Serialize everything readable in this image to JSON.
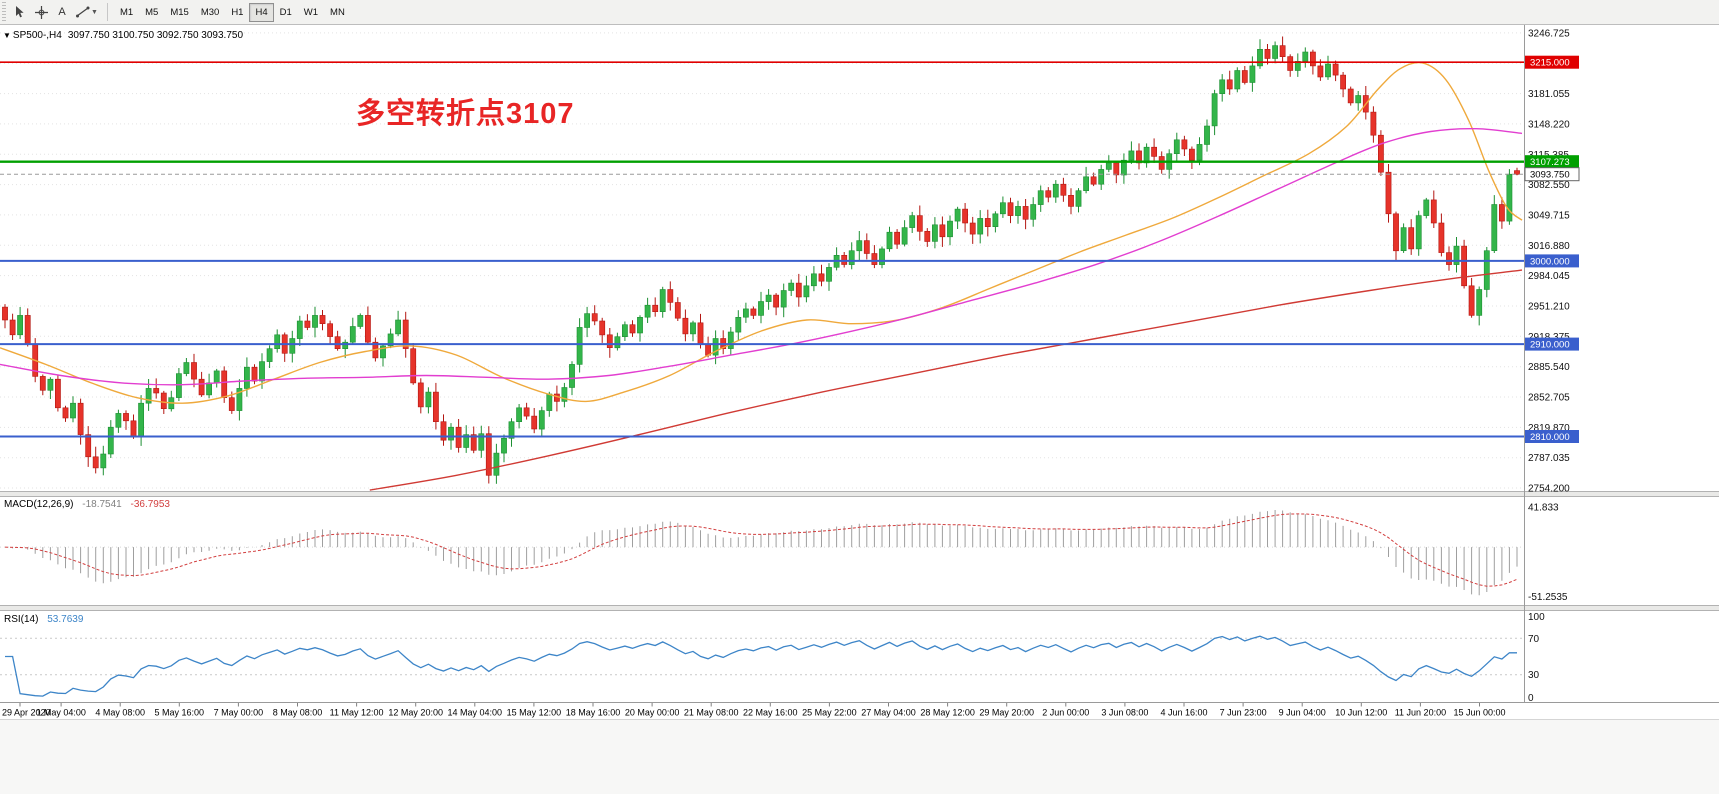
{
  "toolbar": {
    "text_tool_label": "A",
    "timeframes": [
      "M1",
      "M5",
      "M15",
      "M30",
      "H1",
      "H4",
      "D1",
      "W1",
      "MN"
    ],
    "active_timeframe": "H4"
  },
  "chart": {
    "header_symbol": "SP500-,H4",
    "header_ohlc": "3097.750 3100.750 3092.750 3093.750",
    "annotation": {
      "text": "多空转折点3107",
      "color": "#e82525"
    },
    "price_axis_labels": [
      "3246.725",
      "3213.890",
      "3181.055",
      "3148.220",
      "3115.385",
      "3082.550",
      "3049.715",
      "3016.880",
      "2984.045",
      "2951.210",
      "2918.375",
      "2885.540",
      "2852.705",
      "2819.870",
      "2787.035",
      "2754.200"
    ],
    "levels": [
      {
        "label": "3215.000",
        "price": 3215.0,
        "color": "#e00000",
        "width": 1.6
      },
      {
        "label": "3107.273",
        "price": 3107.273,
        "color": "#00a000",
        "width": 2.4
      },
      {
        "label": "3000.000",
        "price": 3000.0,
        "color": "#3a5fcd",
        "width": 2
      },
      {
        "label": "2910.000",
        "price": 2910.0,
        "color": "#3a5fcd",
        "width": 2
      },
      {
        "label": "2810.000",
        "price": 2810.0,
        "color": "#3a5fcd",
        "width": 2
      }
    ],
    "current_price": {
      "label": "3093.750",
      "value": 3093.75
    },
    "time_axis_labels": [
      "29 Apr 2020",
      "1 May 04:00",
      "4 May 08:00",
      "5 May 16:00",
      "7 May 00:00",
      "8 May 08:00",
      "11 May 12:00",
      "12 May 20:00",
      "14 May 04:00",
      "15 May 12:00",
      "18 May 16:00",
      "20 May 00:00",
      "21 May 08:00",
      "22 May 16:00",
      "25 May 22:00",
      "27 May 04:00",
      "28 May 12:00",
      "29 May 20:00",
      "2 Jun 00:00",
      "3 Jun 08:00",
      "4 Jun 16:00",
      "7 Jun 23:00",
      "9 Jun 04:00",
      "10 Jun 12:00",
      "11 Jun 20:00",
      "15 Jun 00:00"
    ]
  },
  "chart_data": {
    "type": "candlestick",
    "symbol": "SP500-",
    "timeframe": "H4",
    "last_bar_ohlc": {
      "open": 3097.75,
      "high": 3100.75,
      "low": 3092.75,
      "close": 3093.75
    },
    "first_open": 2950,
    "closes": [
      2936,
      2920,
      2941,
      2910,
      2875,
      2860,
      2872,
      2841,
      2830,
      2846,
      2812,
      2788,
      2776,
      2791,
      2820,
      2835,
      2827,
      2810,
      2846,
      2862,
      2857,
      2840,
      2852,
      2878,
      2890,
      2872,
      2855,
      2868,
      2881,
      2852,
      2838,
      2862,
      2885,
      2870,
      2891,
      2905,
      2920,
      2900,
      2916,
      2935,
      2928,
      2941,
      2932,
      2918,
      2905,
      2912,
      2929,
      2941,
      2912,
      2895,
      2908,
      2921,
      2936,
      2905,
      2868,
      2842,
      2858,
      2826,
      2806,
      2820,
      2798,
      2812,
      2795,
      2813,
      2768,
      2792,
      2808,
      2826,
      2841,
      2832,
      2818,
      2838,
      2856,
      2848,
      2863,
      2888,
      2928,
      2943,
      2935,
      2920,
      2906,
      2918,
      2931,
      2922,
      2939,
      2952,
      2945,
      2969,
      2955,
      2938,
      2921,
      2933,
      2910,
      2898,
      2916,
      2905,
      2923,
      2939,
      2948,
      2941,
      2956,
      2963,
      2950,
      2968,
      2976,
      2961,
      2973,
      2986,
      2978,
      2993,
      3006,
      2996,
      3011,
      3022,
      3008,
      2996,
      3013,
      3031,
      3018,
      3036,
      3049,
      3032,
      3021,
      3039,
      3026,
      3043,
      3056,
      3041,
      3029,
      3046,
      3037,
      3051,
      3063,
      3049,
      3059,
      3045,
      3061,
      3076,
      3069,
      3083,
      3071,
      3059,
      3076,
      3091,
      3083,
      3099,
      3106,
      3093,
      3109,
      3119,
      3106,
      3123,
      3113,
      3099,
      3116,
      3131,
      3121,
      3109,
      3126,
      3146,
      3181,
      3196,
      3186,
      3206,
      3193,
      3211,
      3229,
      3219,
      3233,
      3221,
      3206,
      3216,
      3226,
      3211,
      3199,
      3213,
      3201,
      3186,
      3171,
      3179,
      3161,
      3136,
      3096,
      3051,
      3011,
      3036,
      3013,
      3049,
      3066,
      3041,
      3009,
      2996,
      3016,
      2973,
      2941,
      2969,
      3011,
      3061,
      3043,
      3093.75
    ],
    "price_range": {
      "max": 3252,
      "min": 2751
    },
    "moving_averages": [
      {
        "name": "ma-fast-orange",
        "color": "#efa93c",
        "points": [
          [
            0,
            2906
          ],
          [
            0.03,
            2888
          ],
          [
            0.06,
            2868
          ],
          [
            0.09,
            2852
          ],
          [
            0.12,
            2846
          ],
          [
            0.15,
            2854
          ],
          [
            0.18,
            2872
          ],
          [
            0.21,
            2890
          ],
          [
            0.24,
            2902
          ],
          [
            0.27,
            2908
          ],
          [
            0.3,
            2898
          ],
          [
            0.33,
            2874
          ],
          [
            0.36,
            2856
          ],
          [
            0.385,
            2848
          ],
          [
            0.41,
            2858
          ],
          [
            0.44,
            2876
          ],
          [
            0.47,
            2902
          ],
          [
            0.5,
            2924
          ],
          [
            0.53,
            2936
          ],
          [
            0.56,
            2932
          ],
          [
            0.59,
            2936
          ],
          [
            0.62,
            2950
          ],
          [
            0.65,
            2970
          ],
          [
            0.68,
            2990
          ],
          [
            0.71,
            3010
          ],
          [
            0.74,
            3028
          ],
          [
            0.77,
            3046
          ],
          [
            0.8,
            3068
          ],
          [
            0.83,
            3092
          ],
          [
            0.86,
            3116
          ],
          [
            0.885,
            3146
          ],
          [
            0.905,
            3185
          ],
          [
            0.92,
            3208
          ],
          [
            0.935,
            3214
          ],
          [
            0.95,
            3196
          ],
          [
            0.965,
            3152
          ],
          [
            0.978,
            3098
          ],
          [
            0.99,
            3058
          ],
          [
            1,
            3044
          ]
        ]
      },
      {
        "name": "ma-mid-magenta",
        "color": "#e23ed0",
        "points": [
          [
            0,
            2888
          ],
          [
            0.04,
            2876
          ],
          [
            0.08,
            2868
          ],
          [
            0.12,
            2866
          ],
          [
            0.16,
            2870
          ],
          [
            0.2,
            2873
          ],
          [
            0.24,
            2874
          ],
          [
            0.28,
            2876
          ],
          [
            0.32,
            2874
          ],
          [
            0.36,
            2872
          ],
          [
            0.4,
            2876
          ],
          [
            0.44,
            2886
          ],
          [
            0.48,
            2898
          ],
          [
            0.52,
            2910
          ],
          [
            0.56,
            2924
          ],
          [
            0.6,
            2940
          ],
          [
            0.64,
            2958
          ],
          [
            0.68,
            2976
          ],
          [
            0.72,
            2996
          ],
          [
            0.76,
            3020
          ],
          [
            0.8,
            3048
          ],
          [
            0.84,
            3078
          ],
          [
            0.88,
            3108
          ],
          [
            0.91,
            3128
          ],
          [
            0.94,
            3140
          ],
          [
            0.97,
            3143
          ],
          [
            1,
            3138
          ]
        ]
      },
      {
        "name": "ma-slow-red",
        "color": "#d03a34",
        "points": [
          [
            0.243,
            2752
          ],
          [
            0.3,
            2768
          ],
          [
            0.36,
            2789
          ],
          [
            0.42,
            2812
          ],
          [
            0.48,
            2836
          ],
          [
            0.54,
            2858
          ],
          [
            0.6,
            2878
          ],
          [
            0.66,
            2898
          ],
          [
            0.72,
            2916
          ],
          [
            0.78,
            2934
          ],
          [
            0.84,
            2952
          ],
          [
            0.9,
            2968
          ],
          [
            0.95,
            2980
          ],
          [
            1,
            2990
          ]
        ]
      }
    ],
    "colors": {
      "up": "#33b54a",
      "up_border": "#1d8f33",
      "down": "#e6332a",
      "down_border": "#b31712",
      "background": "#ffffff",
      "grid": "#e3e3e3"
    }
  },
  "macd": {
    "label": "MACD(12,26,9)",
    "value_main": "-18.7541",
    "value_signal": "-36.7953",
    "fast": 12,
    "slow": 26,
    "signal": 9,
    "axis_labels": [
      {
        "text": "41.833",
        "value": 41.833
      },
      {
        "text": "-51.2535",
        "value": -51.2535
      }
    ],
    "scale": {
      "max": 52,
      "min": -60
    },
    "histogram_color": "#9f9f9f",
    "signal_color": "#d23f3f"
  },
  "rsi": {
    "label": "RSI(14)",
    "value": "53.7639",
    "period": 14,
    "line_color": "#3d85c8",
    "levels": [
      70,
      30
    ],
    "axis_labels": [
      {
        "text": "100",
        "value": 100
      },
      {
        "text": "70",
        "value": 70
      },
      {
        "text": "30",
        "value": 30
      },
      {
        "text": "0",
        "value": 0
      }
    ]
  }
}
